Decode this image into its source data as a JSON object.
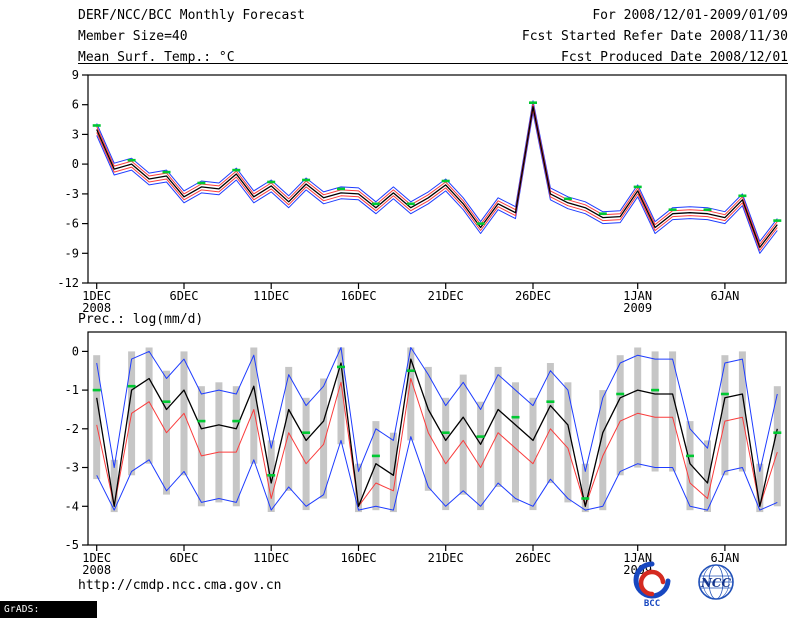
{
  "header": {
    "title": "DERF/NCC/BCC Monthly Forecast",
    "member_size": "Member Size=40",
    "variable": "Mean Surf. Temp.: °C",
    "valid_range": "For 2008/12/01-2009/01/09",
    "refer_date": "Fcst Started Refer Date 2008/11/30",
    "produced_date": "Fcst Produced Date 2008/12/01"
  },
  "sections": {
    "prec_label": "Prec.: log(mm/d)"
  },
  "footer": {
    "url": "http://cmdp.ncc.cma.gov.cn",
    "grads_tag": "GrADS: COLA/IGES",
    "logos": [
      "BCC",
      "NCC"
    ]
  },
  "chart_data": [
    {
      "type": "line",
      "title": "Mean Surf. Temp.: °C",
      "xlabel": "",
      "ylabel": "°C",
      "ylim": [
        9,
        -12
      ],
      "yticks": [
        9,
        6,
        3,
        0,
        -3,
        -6,
        -9,
        -12
      ],
      "n_days": 40,
      "grid": false,
      "xticks": [
        {
          "day": 1,
          "label": "1DEC",
          "sub": "2008"
        },
        {
          "day": 6,
          "label": "6DEC"
        },
        {
          "day": 11,
          "label": "11DEC"
        },
        {
          "day": 16,
          "label": "16DEC"
        },
        {
          "day": 21,
          "label": "21DEC"
        },
        {
          "day": 26,
          "label": "26DEC"
        },
        {
          "day": 32,
          "label": "1JAN",
          "sub": "2009"
        },
        {
          "day": 37,
          "label": "6JAN"
        }
      ],
      "series": [
        {
          "name": "member-spread-blue-upper",
          "color": "#1e3cff",
          "width": 1,
          "values": [
            4.1,
            0.1,
            0.6,
            -0.9,
            -0.6,
            -2.7,
            -1.7,
            -1.9,
            -0.4,
            -2.7,
            -1.6,
            -3.2,
            -1.4,
            -2.8,
            -2.3,
            -2.4,
            -3.8,
            -2.3,
            -3.8,
            -2.8,
            -1.5,
            -3.4,
            -5.8,
            -3.4,
            -4.3,
            6.4,
            -2.4,
            -3.3,
            -3.8,
            -4.8,
            -4.7,
            -2.1,
            -5.8,
            -4.4,
            -4.3,
            -4.4,
            -4.8,
            -3.0,
            -7.8,
            -5.5
          ]
        },
        {
          "name": "member-spread-blue-lower",
          "color": "#1e3cff",
          "width": 1,
          "values": [
            2.9,
            -1.1,
            -0.6,
            -2.1,
            -1.8,
            -3.9,
            -2.9,
            -3.1,
            -1.6,
            -3.9,
            -2.8,
            -4.4,
            -2.6,
            -4.0,
            -3.5,
            -3.6,
            -5.0,
            -3.5,
            -5.0,
            -4.0,
            -2.7,
            -4.6,
            -7.0,
            -4.6,
            -5.5,
            5.2,
            -3.6,
            -4.5,
            -5.0,
            -6.0,
            -5.9,
            -3.3,
            -7.0,
            -5.6,
            -5.5,
            -5.6,
            -6.0,
            -4.2,
            -9.0,
            -6.7
          ]
        },
        {
          "name": "member-spread-red-upper",
          "color": "#fa3c3c",
          "width": 1,
          "values": [
            3.8,
            -0.2,
            0.3,
            -1.2,
            -0.9,
            -3.0,
            -2.0,
            -2.2,
            -0.7,
            -3.0,
            -1.9,
            -3.5,
            -1.7,
            -3.1,
            -2.6,
            -2.7,
            -4.1,
            -2.6,
            -4.1,
            -3.1,
            -1.8,
            -3.7,
            -6.1,
            -3.7,
            -4.6,
            6.1,
            -2.7,
            -3.6,
            -4.1,
            -5.1,
            -5.0,
            -2.4,
            -6.1,
            -4.7,
            -4.6,
            -4.7,
            -5.1,
            -3.3,
            -8.1,
            -5.8
          ]
        },
        {
          "name": "member-spread-red-lower",
          "color": "#fa3c3c",
          "width": 1,
          "values": [
            3.2,
            -0.8,
            -0.3,
            -1.8,
            -1.5,
            -3.6,
            -2.6,
            -2.8,
            -1.3,
            -3.6,
            -2.5,
            -4.1,
            -2.3,
            -3.7,
            -3.2,
            -3.3,
            -4.7,
            -3.2,
            -4.7,
            -3.7,
            -2.4,
            -4.3,
            -6.7,
            -4.3,
            -5.2,
            5.5,
            -3.3,
            -4.2,
            -4.7,
            -5.7,
            -5.6,
            -3.0,
            -6.7,
            -5.3,
            -5.2,
            -5.3,
            -5.7,
            -3.9,
            -8.7,
            -6.4
          ]
        },
        {
          "name": "ensemble-mean",
          "color": "#000000",
          "width": 1.3,
          "values": [
            3.5,
            -0.5,
            0.0,
            -1.5,
            -1.2,
            -3.3,
            -2.3,
            -2.5,
            -1.0,
            -3.3,
            -2.2,
            -3.8,
            -2.0,
            -3.4,
            -2.9,
            -3.0,
            -4.4,
            -2.9,
            -4.4,
            -3.4,
            -2.1,
            -4.0,
            -6.4,
            -4.0,
            -4.9,
            5.8,
            -3.0,
            -3.9,
            -4.4,
            -5.4,
            -5.3,
            -2.7,
            -6.4,
            -5.0,
            -4.9,
            -5.0,
            -5.4,
            -3.6,
            -8.4,
            -6.1
          ]
        }
      ],
      "markers": {
        "name": "observation-dash",
        "color": "#00c832",
        "days": [
          1,
          3,
          5,
          7,
          9,
          11,
          13,
          15,
          17,
          19,
          21,
          23,
          26,
          28,
          30,
          32,
          34,
          36,
          38,
          40
        ],
        "values": [
          3.9,
          0.4,
          -0.8,
          -1.9,
          -0.6,
          -1.8,
          -1.6,
          -2.5,
          -4.0,
          -4.0,
          -1.7,
          -6.0,
          6.2,
          -3.5,
          -5.0,
          -2.3,
          -4.6,
          -4.6,
          -3.2,
          -5.7
        ]
      }
    },
    {
      "type": "line",
      "title": "Prec.: log(mm/d)",
      "xlabel": "",
      "ylabel": "log(mm/d)",
      "ylim": [
        0.5,
        -5
      ],
      "yticks": [
        0,
        -1,
        -2,
        -3,
        -4,
        -5
      ],
      "n_days": 40,
      "grid": false,
      "xticks": [
        {
          "day": 1,
          "label": "1DEC",
          "sub": "2008"
        },
        {
          "day": 6,
          "label": "6DEC"
        },
        {
          "day": 11,
          "label": "11DEC"
        },
        {
          "day": 16,
          "label": "16DEC"
        },
        {
          "day": 21,
          "label": "21DEC"
        },
        {
          "day": 26,
          "label": "26DEC"
        },
        {
          "day": 32,
          "label": "1JAN",
          "sub": "2009"
        },
        {
          "day": 37,
          "label": "6JAN"
        }
      ],
      "bars": {
        "name": "member-range-bar",
        "color": "#c6c6c6",
        "top": [
          -0.1,
          -2.8,
          0.0,
          0.1,
          -0.5,
          0.0,
          -0.9,
          -0.8,
          -0.9,
          0.1,
          -2.3,
          -0.4,
          -1.2,
          -0.7,
          0.1,
          -2.9,
          -1.8,
          -2.1,
          0.1,
          -0.4,
          -1.2,
          -0.6,
          -1.3,
          -0.4,
          -0.8,
          -1.2,
          -0.3,
          -0.8,
          -2.9,
          -1.0,
          -0.1,
          0.1,
          0.0,
          0.0,
          -1.8,
          -2.3,
          -0.1,
          0.0,
          -2.9,
          -0.9
        ],
        "bottom": [
          -3.3,
          -4.15,
          -3.2,
          -2.9,
          -3.7,
          -3.2,
          -4.0,
          -3.9,
          -4.0,
          -2.9,
          -4.15,
          -3.6,
          -4.1,
          -3.8,
          -2.4,
          -4.15,
          -4.1,
          -4.15,
          -2.3,
          -3.6,
          -4.1,
          -3.7,
          -4.1,
          -3.5,
          -3.9,
          -4.1,
          -3.4,
          -3.9,
          -4.15,
          -4.1,
          -3.2,
          -3.0,
          -3.1,
          -3.1,
          -4.1,
          -4.15,
          -3.2,
          -3.1,
          -4.15,
          -4.0
        ]
      },
      "series": [
        {
          "name": "member-envelope-blue-upper",
          "color": "#1e3cff",
          "width": 1,
          "values": [
            -0.3,
            -3.0,
            -0.2,
            0.0,
            -0.7,
            -0.2,
            -1.1,
            -1.0,
            -1.1,
            -0.1,
            -2.5,
            -0.6,
            -1.4,
            -0.9,
            0.1,
            -3.1,
            -2.0,
            -2.3,
            0.1,
            -0.6,
            -1.4,
            -0.8,
            -1.5,
            -0.6,
            -1.0,
            -1.4,
            -0.5,
            -1.0,
            -3.1,
            -1.2,
            -0.3,
            -0.1,
            -0.2,
            -0.2,
            -2.0,
            -2.5,
            -0.3,
            -0.2,
            -3.1,
            -1.1
          ]
        },
        {
          "name": "member-envelope-blue-lower",
          "color": "#1e3cff",
          "width": 1,
          "values": [
            -3.2,
            -4.1,
            -3.1,
            -2.8,
            -3.6,
            -3.1,
            -3.9,
            -3.8,
            -3.9,
            -2.8,
            -4.1,
            -3.5,
            -4.0,
            -3.7,
            -2.3,
            -4.1,
            -4.0,
            -4.1,
            -2.2,
            -3.5,
            -4.0,
            -3.6,
            -4.0,
            -3.4,
            -3.8,
            -4.0,
            -3.3,
            -3.8,
            -4.1,
            -4.0,
            -3.1,
            -2.9,
            -3.0,
            -3.0,
            -4.0,
            -4.1,
            -3.1,
            -3.0,
            -4.1,
            -3.9
          ]
        },
        {
          "name": "median-red",
          "color": "#fa3c3c",
          "width": 1,
          "values": [
            -1.9,
            -4.0,
            -1.6,
            -1.3,
            -2.1,
            -1.6,
            -2.7,
            -2.6,
            -2.6,
            -1.5,
            -3.8,
            -2.1,
            -2.9,
            -2.4,
            -0.8,
            -4.0,
            -3.4,
            -3.6,
            -0.7,
            -2.1,
            -2.9,
            -2.3,
            -3.0,
            -2.1,
            -2.5,
            -2.9,
            -2.0,
            -2.5,
            -4.0,
            -2.7,
            -1.8,
            -1.6,
            -1.7,
            -1.7,
            -3.4,
            -3.8,
            -1.8,
            -1.7,
            -4.0,
            -2.6
          ]
        },
        {
          "name": "ensemble-mean",
          "color": "#000000",
          "width": 1.3,
          "values": [
            -1.2,
            -4.0,
            -1.0,
            -0.7,
            -1.5,
            -1.0,
            -2.0,
            -1.9,
            -2.0,
            -0.9,
            -3.4,
            -1.5,
            -2.3,
            -1.8,
            -0.3,
            -4.0,
            -2.9,
            -3.2,
            -0.2,
            -1.5,
            -2.3,
            -1.7,
            -2.4,
            -1.5,
            -1.9,
            -2.3,
            -1.4,
            -1.9,
            -4.0,
            -2.1,
            -1.2,
            -1.0,
            -1.1,
            -1.1,
            -2.9,
            -3.4,
            -1.2,
            -1.1,
            -4.0,
            -2.0
          ]
        }
      ],
      "markers": {
        "name": "observation-dash",
        "color": "#00c832",
        "days": [
          1,
          3,
          5,
          7,
          9,
          11,
          13,
          15,
          17,
          19,
          21,
          23,
          25,
          27,
          29,
          31,
          33,
          35,
          37,
          40
        ],
        "values": [
          -1.0,
          -0.9,
          -1.3,
          -1.8,
          -1.8,
          -3.2,
          -2.1,
          -0.4,
          -2.7,
          -0.5,
          -2.1,
          -2.2,
          -1.7,
          -1.3,
          -3.8,
          -1.1,
          -1.0,
          -2.7,
          -1.1,
          -2.1
        ]
      }
    }
  ]
}
